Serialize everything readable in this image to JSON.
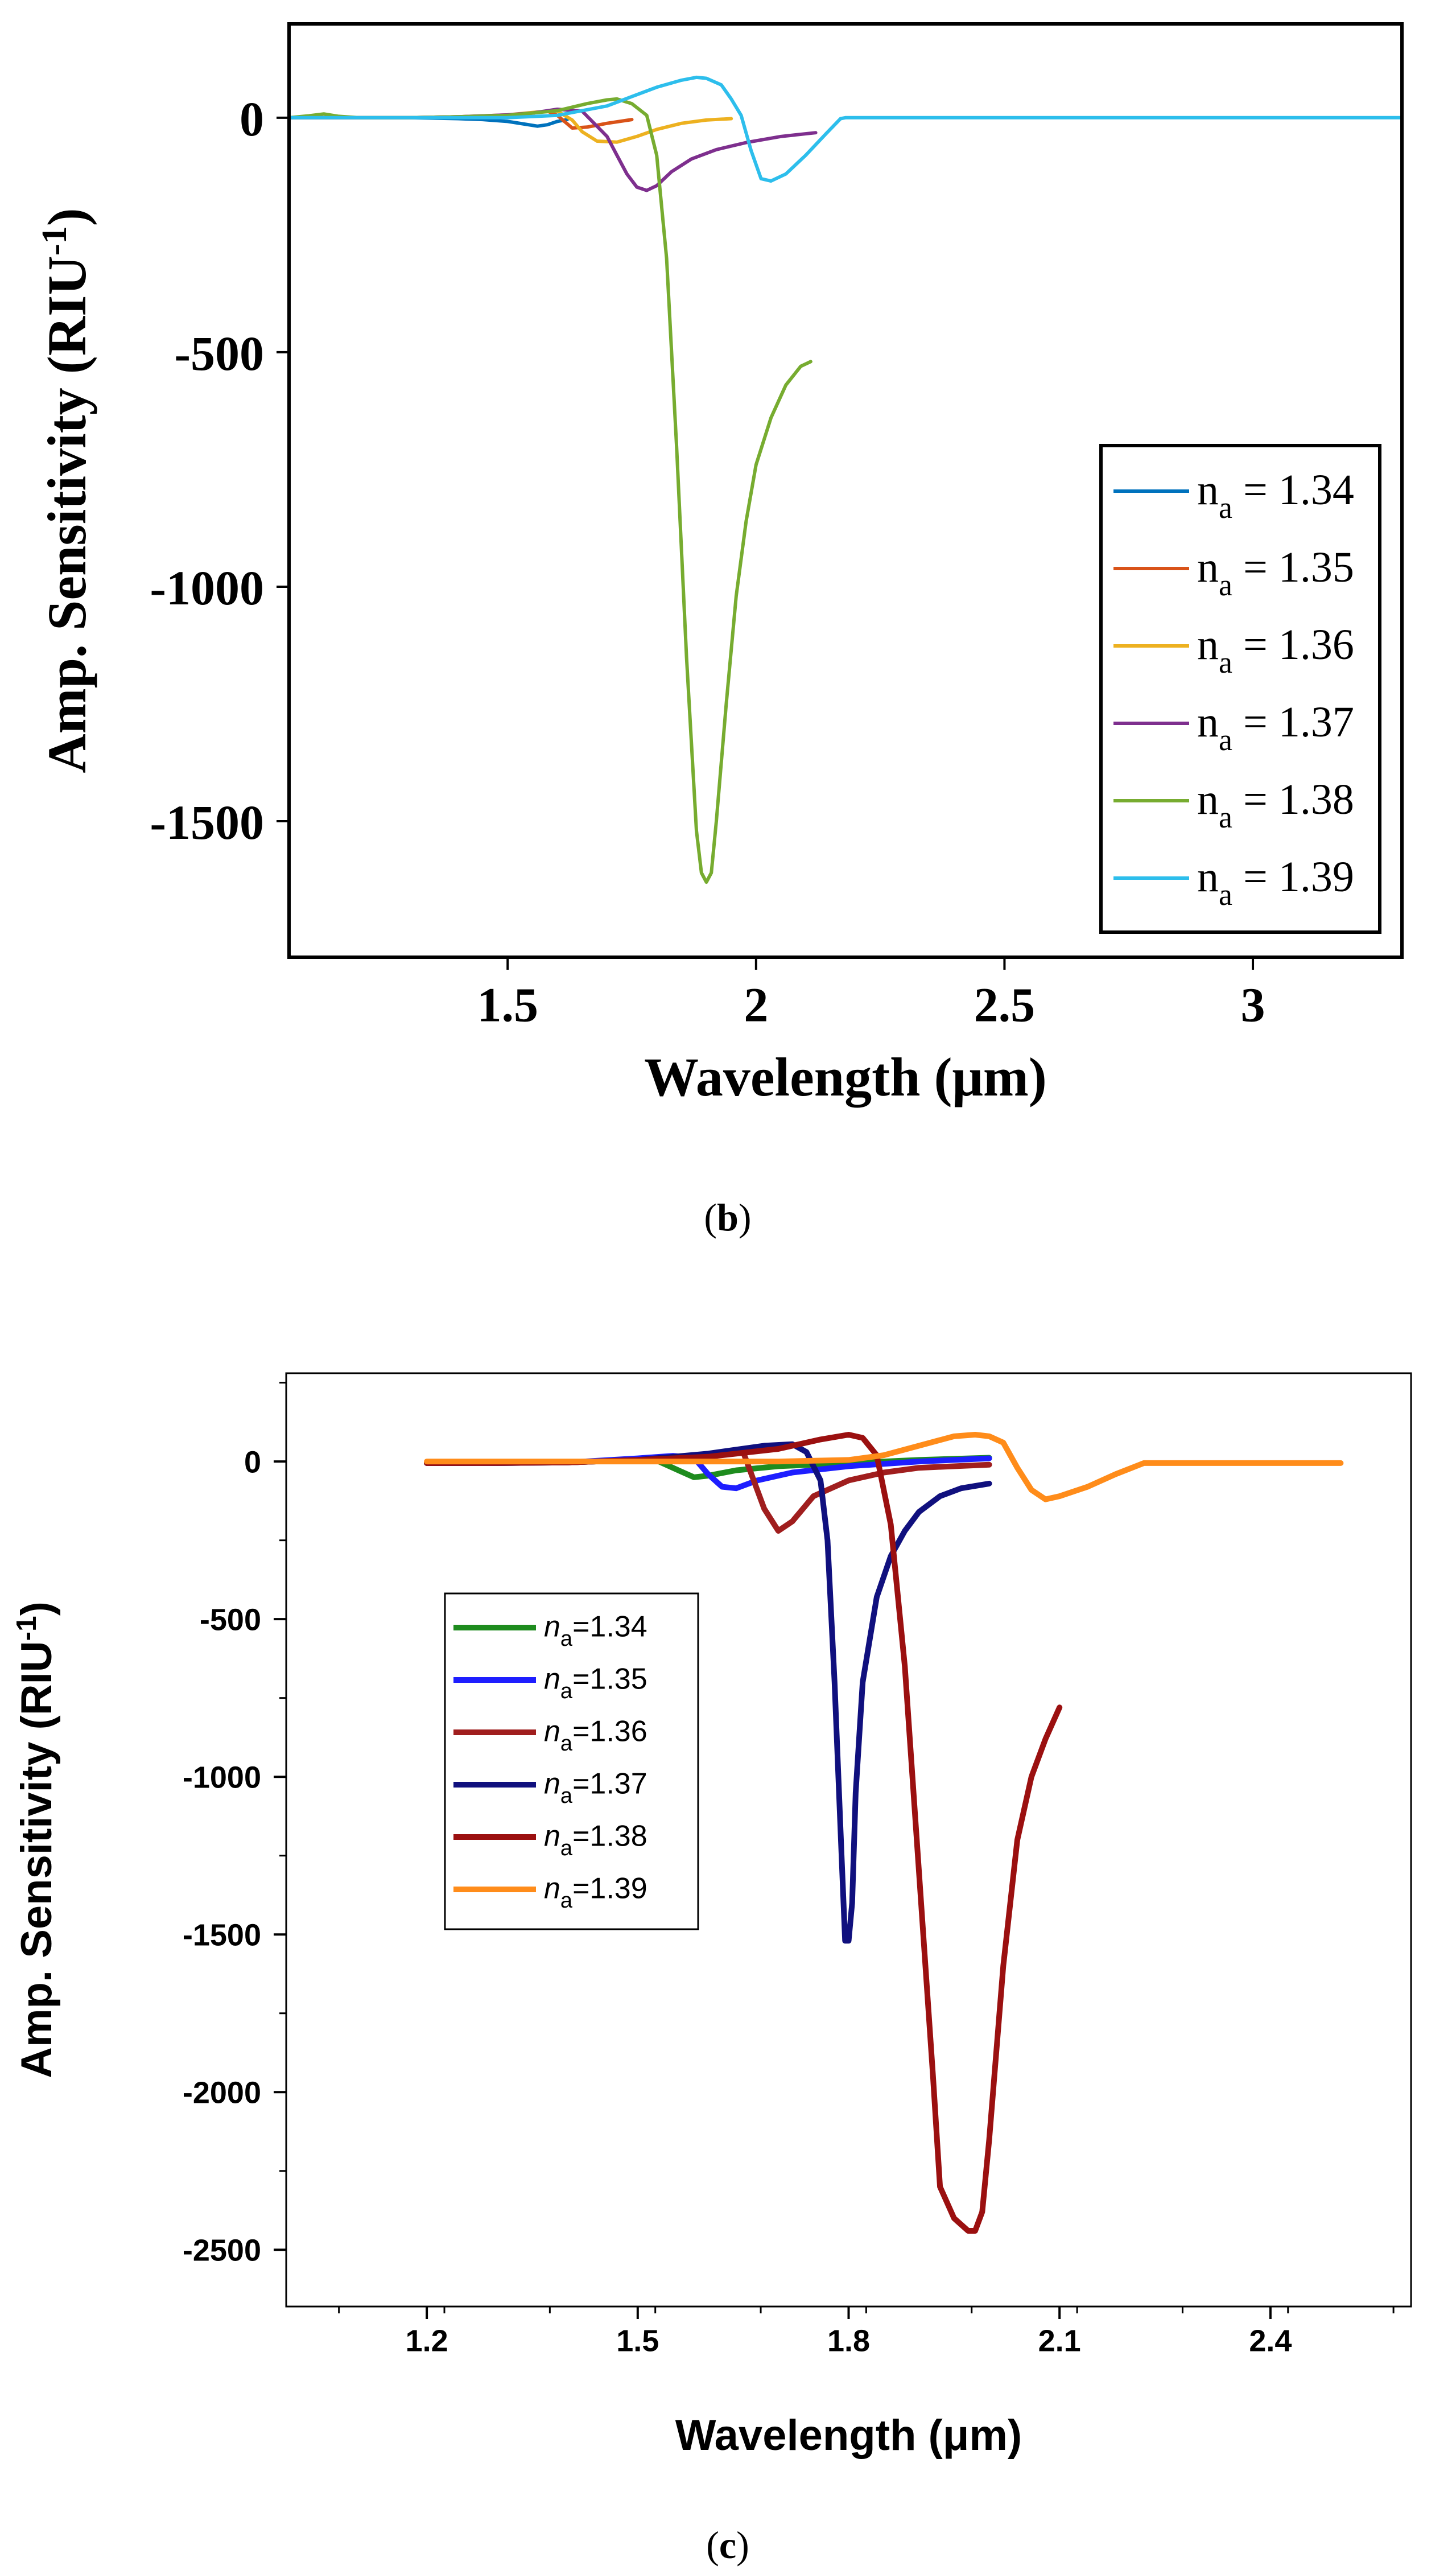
{
  "panels": [
    {
      "caption": "b"
    },
    {
      "caption": "c"
    }
  ],
  "chart_data": [
    {
      "id": "b",
      "type": "line",
      "xlabel": "Wavelength (μm)",
      "ylabel": "Amp. Sensitivity (RIU",
      "ylabel_sup": "-1",
      "ylabel_close": ")",
      "xlim": [
        1.06,
        3.3
      ],
      "ylim": [
        -1790,
        200
      ],
      "xticks": [
        1.5,
        2,
        2.5,
        3
      ],
      "xtick_labels": [
        "1.5",
        "2",
        "2.5",
        "3"
      ],
      "yticks": [
        0,
        -500,
        -1000,
        -1500
      ],
      "ytick_labels": [
        "0",
        "-500",
        "-1000",
        "-1500"
      ],
      "legend_position": "right",
      "series": [
        {
          "label_main": "n",
          "label_sub": "a",
          "label_rest": " = 1.34",
          "color": "#0072BD",
          "x": [
            1.06,
            1.2,
            1.3,
            1.4,
            1.45,
            1.5,
            1.53,
            1.56,
            1.58,
            1.6,
            1.62
          ],
          "y": [
            0,
            0,
            0,
            -2,
            -4,
            -8,
            -13,
            -18,
            -15,
            -8,
            -4
          ]
        },
        {
          "label_main": "n",
          "label_sub": "a",
          "label_rest": " = 1.35",
          "color": "#D95319",
          "x": [
            1.06,
            1.2,
            1.3,
            1.4,
            1.5,
            1.55,
            1.58,
            1.6,
            1.63,
            1.66,
            1.7,
            1.75
          ],
          "y": [
            0,
            0,
            0,
            2,
            5,
            10,
            14,
            5,
            -22,
            -20,
            -12,
            -4
          ]
        },
        {
          "label_main": "n",
          "label_sub": "a",
          "label_rest": " = 1.36",
          "color": "#EDB120",
          "x": [
            1.06,
            1.2,
            1.3,
            1.4,
            1.5,
            1.56,
            1.6,
            1.63,
            1.65,
            1.68,
            1.72,
            1.76,
            1.8,
            1.85,
            1.9,
            1.95
          ],
          "y": [
            0,
            0,
            0,
            2,
            6,
            12,
            14,
            -5,
            -30,
            -50,
            -52,
            -40,
            -25,
            -12,
            -5,
            -2
          ]
        },
        {
          "label_main": "n",
          "label_sub": "a",
          "label_rest": " = 1.37",
          "color": "#7E2F8E",
          "x": [
            1.06,
            1.2,
            1.3,
            1.4,
            1.5,
            1.55,
            1.6,
            1.65,
            1.7,
            1.72,
            1.74,
            1.76,
            1.78,
            1.8,
            1.83,
            1.87,
            1.92,
            1.98,
            2.05,
            2.12
          ],
          "y": [
            0,
            0,
            0,
            2,
            6,
            10,
            18,
            14,
            -40,
            -80,
            -120,
            -148,
            -155,
            -145,
            -115,
            -88,
            -68,
            -53,
            -40,
            -32
          ]
        },
        {
          "label_main": "n",
          "label_sub": "a",
          "label_rest": " = 1.38",
          "color": "#77AC30",
          "x": [
            1.06,
            1.1,
            1.13,
            1.16,
            1.2,
            1.3,
            1.4,
            1.5,
            1.6,
            1.66,
            1.7,
            1.72,
            1.75,
            1.78,
            1.8,
            1.82,
            1.84,
            1.86,
            1.88,
            1.89,
            1.9,
            1.91,
            1.92,
            1.94,
            1.96,
            1.98,
            2.0,
            2.03,
            2.06,
            2.09,
            2.11
          ],
          "y": [
            0,
            4,
            8,
            3,
            0,
            0,
            2,
            5,
            15,
            30,
            38,
            40,
            30,
            5,
            -80,
            -300,
            -700,
            -1150,
            -1520,
            -1610,
            -1630,
            -1610,
            -1500,
            -1250,
            -1020,
            -860,
            -740,
            -640,
            -570,
            -530,
            -520
          ]
        },
        {
          "label_main": "n",
          "label_sub": "a",
          "label_rest": " = 1.39",
          "color": "#2DBEEC",
          "x": [
            1.06,
            1.2,
            1.4,
            1.5,
            1.6,
            1.7,
            1.75,
            1.8,
            1.85,
            1.88,
            1.9,
            1.93,
            1.95,
            1.97,
            1.99,
            2.01,
            2.03,
            2.06,
            2.1,
            2.14,
            2.17,
            2.18,
            2.5,
            3.0,
            3.3
          ],
          "y": [
            0,
            0,
            0,
            0,
            5,
            25,
            45,
            65,
            80,
            86,
            84,
            70,
            40,
            5,
            -70,
            -130,
            -135,
            -120,
            -80,
            -35,
            -2,
            0,
            0,
            0,
            0
          ]
        }
      ]
    },
    {
      "id": "c",
      "type": "line",
      "xlabel": "Wavelength (μm)",
      "ylabel": "Amp. Sensitivity (RIU",
      "ylabel_sup": "-1",
      "ylabel_close": ")",
      "xlim": [
        1.0,
        2.6
      ],
      "ylim": [
        -2680,
        280
      ],
      "xticks": [
        1.2,
        1.5,
        1.8,
        2.1,
        2.4
      ],
      "xtick_labels": [
        "1.2",
        "1.5",
        "1.8",
        "2.1",
        "2.4"
      ],
      "yticks": [
        0,
        -500,
        -1000,
        -1500,
        -2000,
        -2500
      ],
      "ytick_labels": [
        "0",
        "-500",
        "-1000",
        "-1500",
        "-2000",
        "-2500"
      ],
      "legend_position": "left",
      "series": [
        {
          "label_main": "n",
          "label_sub": "a",
          "label_rest": "=1.34",
          "color": "#1E8C1E",
          "x": [
            1.2,
            1.3,
            1.4,
            1.5,
            1.53,
            1.56,
            1.58,
            1.6,
            1.64,
            1.7,
            1.8,
            1.9,
            2.0
          ],
          "y": [
            -5,
            -5,
            -3,
            5,
            0,
            -30,
            -50,
            -45,
            -28,
            -15,
            -5,
            5,
            12
          ]
        },
        {
          "label_main": "n",
          "label_sub": "a",
          "label_rest": "=1.35",
          "color": "#1E1EFF",
          "x": [
            1.2,
            1.3,
            1.4,
            1.5,
            1.55,
            1.58,
            1.6,
            1.62,
            1.64,
            1.67,
            1.72,
            1.8,
            1.9,
            2.0
          ],
          "y": [
            -5,
            -5,
            -3,
            10,
            18,
            12,
            -40,
            -80,
            -85,
            -60,
            -35,
            -15,
            0,
            10
          ]
        },
        {
          "label_main": "n",
          "label_sub": "a",
          "label_rest": "=1.36",
          "color": "#A01E1E",
          "x": [
            1.2,
            1.3,
            1.4,
            1.5,
            1.6,
            1.65,
            1.68,
            1.7,
            1.72,
            1.75,
            1.8,
            1.85,
            1.9,
            2.0
          ],
          "y": [
            -5,
            -5,
            -3,
            5,
            15,
            30,
            -150,
            -220,
            -190,
            -110,
            -60,
            -35,
            -20,
            -10
          ]
        },
        {
          "label_main": "n",
          "label_sub": "a",
          "label_rest": "=1.37",
          "color": "#10107E",
          "x": [
            1.2,
            1.4,
            1.5,
            1.6,
            1.68,
            1.72,
            1.74,
            1.76,
            1.77,
            1.78,
            1.79,
            1.795,
            1.8,
            1.805,
            1.81,
            1.82,
            1.84,
            1.86,
            1.88,
            1.9,
            1.93,
            1.96,
            2.0
          ],
          "y": [
            -5,
            -3,
            5,
            25,
            50,
            55,
            30,
            -60,
            -250,
            -700,
            -1250,
            -1520,
            -1520,
            -1400,
            -1050,
            -700,
            -430,
            -300,
            -220,
            -160,
            -110,
            -85,
            -70
          ]
        },
        {
          "label_main": "n",
          "label_sub": "a",
          "label_rest": "=1.38",
          "color": "#9B1010",
          "x": [
            1.2,
            1.4,
            1.5,
            1.6,
            1.7,
            1.76,
            1.8,
            1.82,
            1.84,
            1.86,
            1.88,
            1.9,
            1.92,
            1.93,
            1.95,
            1.97,
            1.98,
            1.99,
            2.0,
            2.02,
            2.04,
            2.06,
            2.08,
            2.1
          ],
          "y": [
            -5,
            -3,
            5,
            15,
            40,
            70,
            85,
            75,
            20,
            -200,
            -650,
            -1300,
            -1950,
            -2300,
            -2400,
            -2440,
            -2440,
            -2380,
            -2150,
            -1600,
            -1200,
            -1000,
            -880,
            -780
          ]
        },
        {
          "label_main": "n",
          "label_sub": "a",
          "label_rest": "=1.39",
          "color": "#FF8C1A",
          "x": [
            1.2,
            1.5,
            1.7,
            1.8,
            1.85,
            1.9,
            1.95,
            1.98,
            2.0,
            2.02,
            2.04,
            2.06,
            2.08,
            2.1,
            2.14,
            2.18,
            2.22,
            2.3,
            2.4,
            2.5
          ],
          "y": [
            0,
            0,
            0,
            5,
            20,
            50,
            80,
            85,
            80,
            60,
            -20,
            -90,
            -120,
            -110,
            -80,
            -40,
            -5,
            -5,
            -5,
            -5
          ]
        }
      ]
    }
  ]
}
